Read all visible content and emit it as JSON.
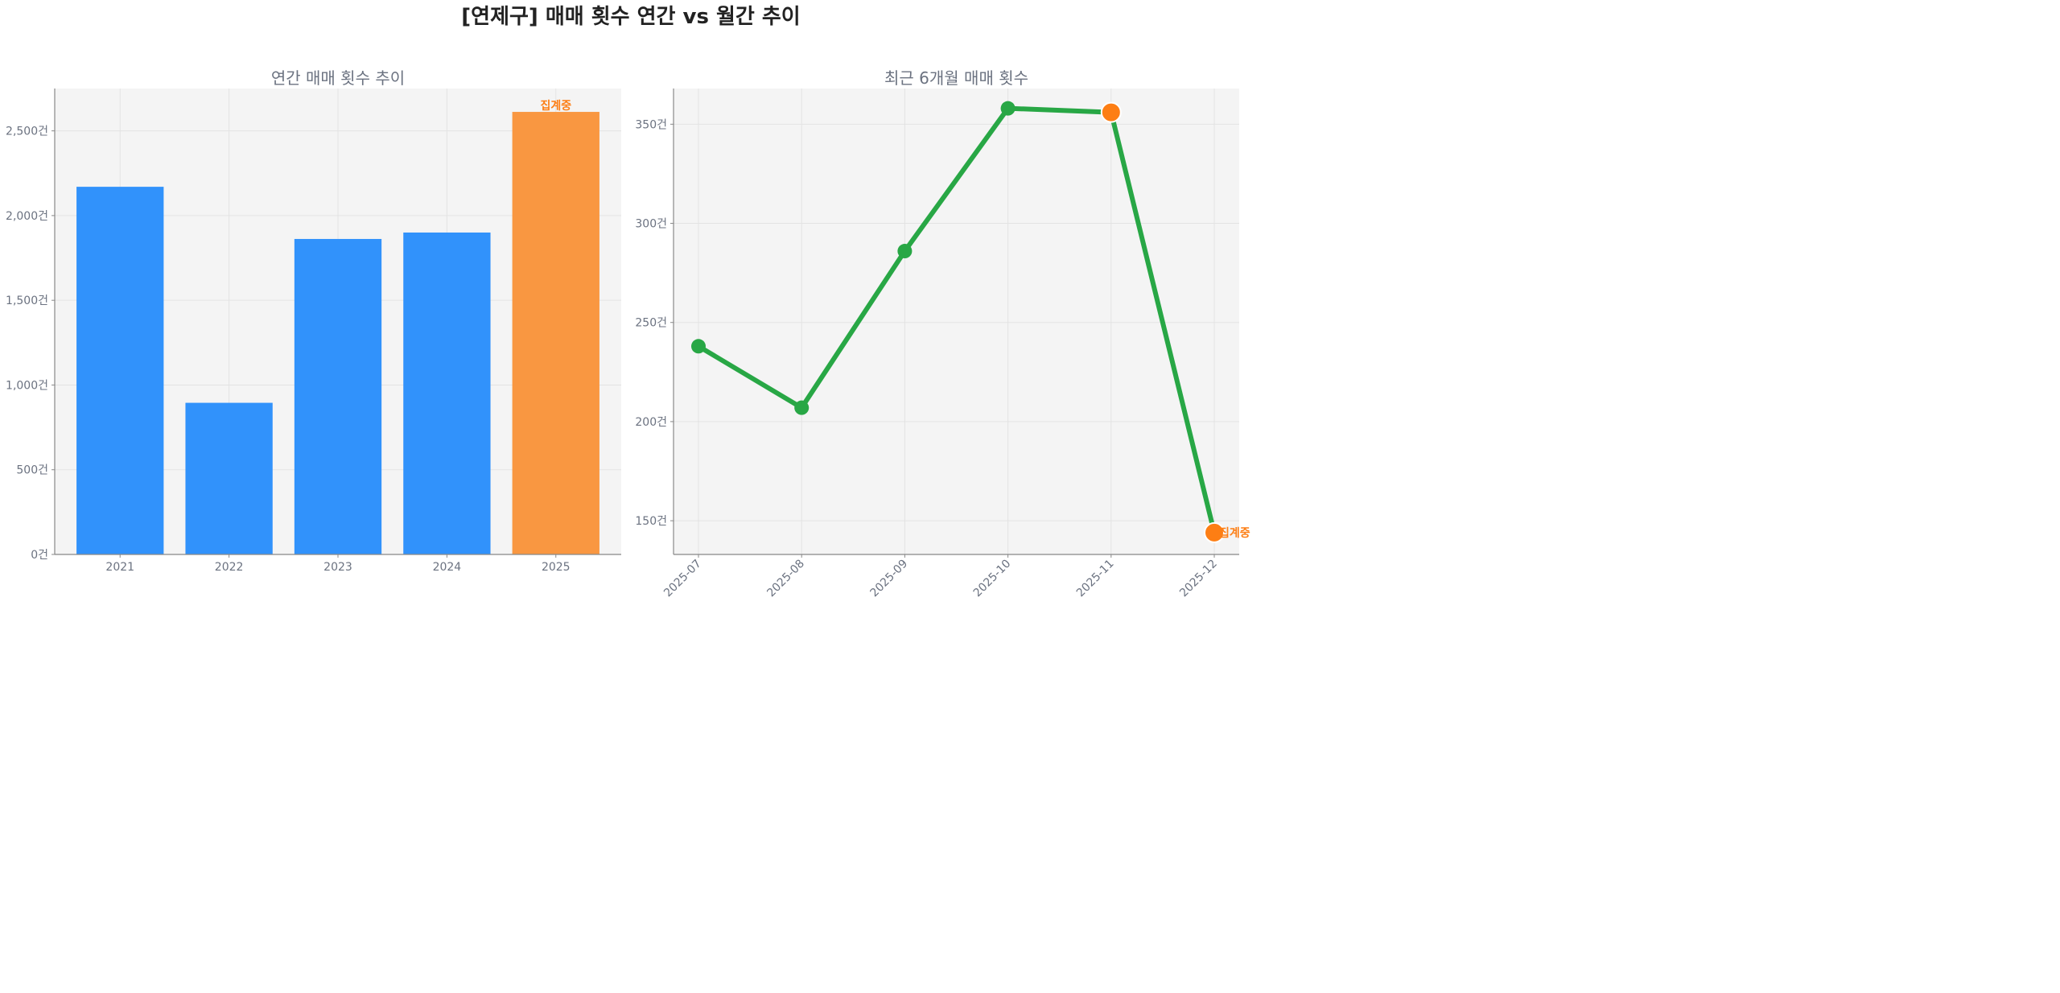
{
  "title": "[연제구] 매매 횟수 연간 vs 월간 추이",
  "colors": {
    "bar": "#3192fb",
    "bar_highlight": "#f99741",
    "line": "#28a745",
    "highlight_point": "#fd7e14",
    "annotation": "#fd7e14",
    "panel_bg": "#f4f4f4"
  },
  "chart_data": [
    {
      "type": "bar",
      "title": "연간 매매 횟수 추이",
      "categories": [
        "2021",
        "2022",
        "2023",
        "2024",
        "2025"
      ],
      "values": [
        2170,
        895,
        1862,
        1900,
        2612
      ],
      "highlight_index": 4,
      "annotation": {
        "index": 4,
        "text": "집계중"
      },
      "ylim": [
        0,
        2750
      ],
      "yticks": [
        0,
        500,
        1000,
        1500,
        2000,
        2500
      ],
      "ytick_labels": [
        "0건",
        "500건",
        "1,000건",
        "1,500건",
        "2,000건",
        "2,500건"
      ],
      "xlabel": "",
      "ylabel": "",
      "grid": true
    },
    {
      "type": "line",
      "title": "최근 6개월 매매 횟수",
      "categories": [
        "2025-07",
        "2025-08",
        "2025-09",
        "2025-10",
        "2025-11",
        "2025-12"
      ],
      "values": [
        238,
        207,
        286,
        358,
        356,
        144
      ],
      "highlight_indices": [
        4,
        5
      ],
      "annotation": {
        "index": 5,
        "text": "집계중"
      },
      "ylim": [
        133,
        368
      ],
      "yticks": [
        150,
        200,
        250,
        300,
        350
      ],
      "ytick_labels": [
        "150건",
        "200건",
        "250건",
        "300건",
        "350건"
      ],
      "xlabel": "",
      "ylabel": "",
      "grid": true
    }
  ]
}
